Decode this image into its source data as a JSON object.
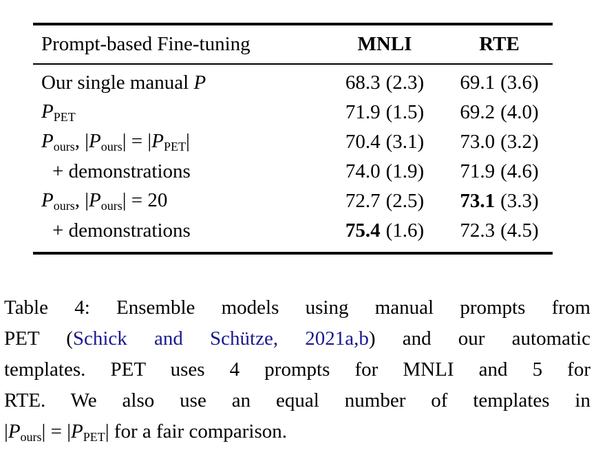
{
  "colors": {
    "background": "#ffffff",
    "text": "#000000",
    "citation_link": "#19198f",
    "rule": "#000000"
  },
  "table": {
    "header": {
      "label": "Prompt-based Fine-tuning",
      "mnli": "MNLI",
      "rte": "RTE"
    },
    "rows": [
      {
        "parts": [
          "Our single manual ",
          "P"
        ],
        "mnli": {
          "val": "68.3",
          "sd": "(2.3)",
          "bold": false
        },
        "rte": {
          "val": "69.1",
          "sd": "(3.6)",
          "bold": false
        }
      },
      {
        "parts": [
          "P",
          "PET"
        ],
        "mnli": {
          "val": "71.9",
          "sd": "(1.5)",
          "bold": false
        },
        "rte": {
          "val": "69.2",
          "sd": "(4.0)",
          "bold": false
        }
      },
      {
        "parts": [
          "P",
          "ours",
          ", |",
          "P",
          "ours",
          "| = |",
          "P",
          "PET",
          "|"
        ],
        "mnli": {
          "val": "70.4",
          "sd": "(3.1)",
          "bold": false
        },
        "rte": {
          "val": "73.0",
          "sd": "(3.2)",
          "bold": false
        }
      },
      {
        "label": "+ demonstrations",
        "mnli": {
          "val": "74.0",
          "sd": "(1.9)",
          "bold": false
        },
        "rte": {
          "val": "71.9",
          "sd": "(4.6)",
          "bold": false
        }
      },
      {
        "parts": [
          "P",
          "ours",
          ", |",
          "P",
          "ours",
          "| = 20"
        ],
        "mnli": {
          "val": "72.7",
          "sd": "(2.5)",
          "bold": false
        },
        "rte": {
          "val": "73.1",
          "sd": "(3.3)",
          "bold": true
        }
      },
      {
        "label": "+ demonstrations",
        "mnli": {
          "val": "75.4",
          "sd": "(1.6)",
          "bold": true
        },
        "rte": {
          "val": "72.3",
          "sd": "(4.5)",
          "bold": false
        }
      }
    ]
  },
  "caption": {
    "line1": "Table 4: Ensemble models using manual prompts from",
    "line2_pre": "PET (",
    "line2_link": "Schick and Schütze, 2021a,b",
    "line2_post": ") and our automatic",
    "line3": "templates.  PET uses 4 prompts for MNLI and 5 for",
    "line4": "RTE. We also use an equal number of templates in",
    "line5_parts": [
      "|",
      "P",
      "ours",
      "| = |",
      "P",
      "PET",
      "| for a fair comparison."
    ]
  }
}
